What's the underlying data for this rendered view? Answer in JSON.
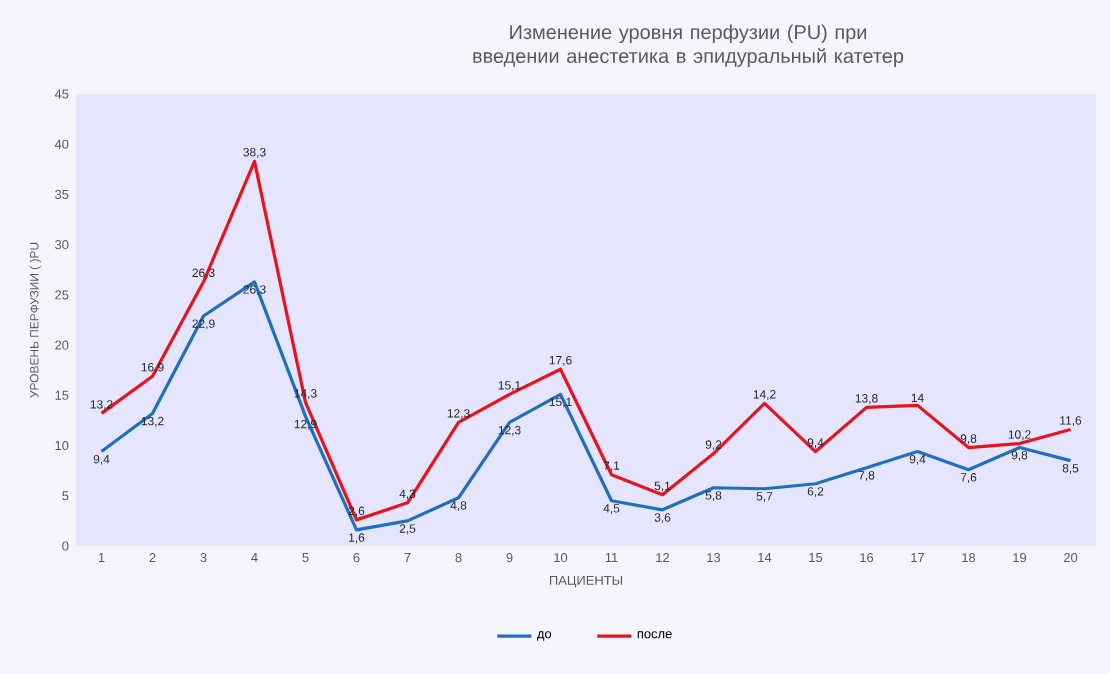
{
  "chart_data": {
    "type": "line",
    "title": "Изменение  уровня  перфузии (PU) при введении анестетика в эпидуральный  катетер",
    "xlabel": "ПАЦИЕНТЫ",
    "ylabel": "УРОВЕНЬ ПЕРФУЗИИ ( )PU",
    "categories": [
      "1",
      "2",
      "3",
      "4",
      "5",
      "6",
      "7",
      "8",
      "9",
      "10",
      "11",
      "12",
      "13",
      "14",
      "15",
      "16",
      "17",
      "18",
      "19",
      "20"
    ],
    "series": [
      {
        "name": "до",
        "color": "#1f6fbf",
        "values": [
          9.4,
          13.2,
          22.9,
          26.3,
          12.9,
          1.6,
          2.5,
          4.8,
          12.3,
          15.1,
          4.5,
          3.6,
          5.8,
          5.7,
          6.2,
          7.8,
          9.4,
          7.6,
          9.8,
          8.5
        ],
        "value_labels": [
          "9,4",
          "13,2",
          "22,9",
          "26,3",
          "12,9",
          "1,6",
          "2,5",
          "4,8",
          "12,3",
          "15,1",
          "4,5",
          "3,6",
          "5,8",
          "5,7",
          "6,2",
          "7,8",
          "9,4",
          "7,6",
          "9,8",
          "8,5"
        ]
      },
      {
        "name": "после",
        "color": "#e8141c",
        "values": [
          13.2,
          16.9,
          26.3,
          38.3,
          14.3,
          2.6,
          4.3,
          12.3,
          15.1,
          17.6,
          7.1,
          5.1,
          9.2,
          14.2,
          9.4,
          13.8,
          14,
          9.8,
          10.2,
          11.6
        ],
        "value_labels": [
          "13,2",
          "16,9",
          "26,3",
          "38,3",
          "14,3",
          "2,6",
          "4,3",
          "12,3",
          "15,1",
          "17,6",
          "7,1",
          "5,1",
          "9,2",
          "14,2",
          "9,4",
          "13,8",
          "14",
          "9,8",
          "10,2",
          "11,6"
        ]
      }
    ],
    "ylim": [
      0,
      45
    ],
    "yticks": [
      0,
      5,
      10,
      15,
      20,
      25,
      30,
      35,
      40,
      45
    ],
    "legend": "bottom",
    "marker": "none",
    "line_style": "solid",
    "grid": false
  }
}
